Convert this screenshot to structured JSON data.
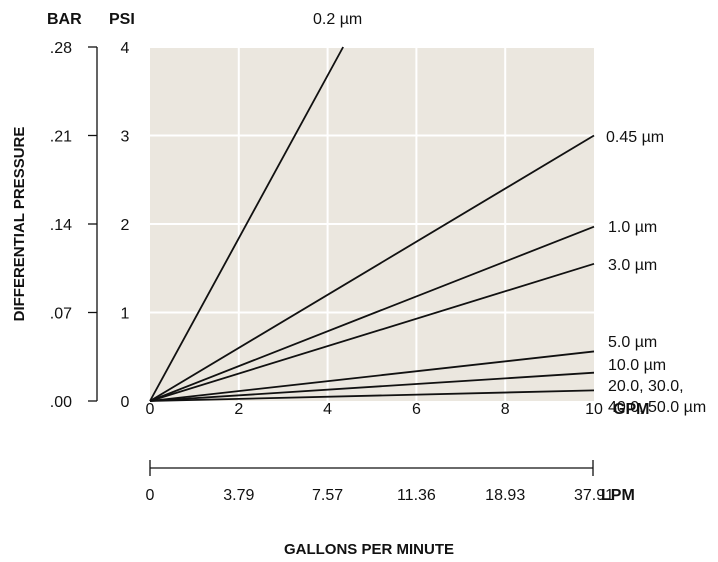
{
  "chart_data": {
    "type": "line",
    "xlabel": "GALLONS PER MINUTE",
    "ylabel": "DIFFERENTIAL PRESSURE",
    "x_unit": "GPM",
    "x2_unit": "LPM",
    "y_unit": "PSI",
    "y2_unit": "BAR",
    "xlim": [
      0,
      10
    ],
    "ylim": [
      0,
      4
    ],
    "x_ticks": [
      "0",
      "2",
      "4",
      "6",
      "8",
      "10"
    ],
    "x2_ticks": [
      "0",
      "3.79",
      "7.57",
      "11.36",
      "18.93",
      "37.91"
    ],
    "y_ticks": [
      "0",
      "1",
      "2",
      "3",
      "4"
    ],
    "y2_ticks": [
      ".00",
      ".07",
      ".14",
      ".21",
      ".28"
    ],
    "grid": true,
    "background": "#ebe7df",
    "series": [
      {
        "name": "0.2 µm",
        "points": [
          [
            0,
            0
          ],
          [
            4.35,
            4
          ]
        ]
      },
      {
        "name": "0.45 µm",
        "points": [
          [
            0,
            0
          ],
          [
            10,
            3
          ]
        ]
      },
      {
        "name": "1.0 µm",
        "points": [
          [
            0,
            0
          ],
          [
            10,
            1.97
          ]
        ]
      },
      {
        "name": "3.0 µm",
        "points": [
          [
            0,
            0
          ],
          [
            10,
            1.55
          ]
        ]
      },
      {
        "name": "5.0 µm",
        "points": [
          [
            0,
            0
          ],
          [
            10,
            0.56
          ]
        ]
      },
      {
        "name": "10.0 µm",
        "points": [
          [
            0,
            0
          ],
          [
            10,
            0.32
          ]
        ]
      },
      {
        "name": "20.0, 30.0,",
        "points": [
          [
            0,
            0
          ],
          [
            10,
            0.12
          ]
        ]
      }
    ],
    "annotations": [
      "40.0, 50.0 µm"
    ]
  }
}
